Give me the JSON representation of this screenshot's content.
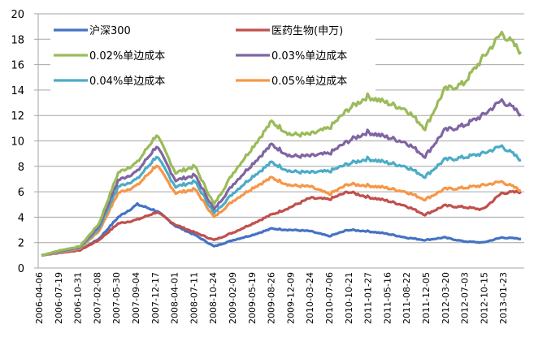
{
  "chart_data": {
    "type": "line",
    "title": "",
    "xlabel": "",
    "ylabel": "",
    "ylim": [
      0,
      20
    ],
    "yticks": [
      0,
      2,
      4,
      6,
      8,
      10,
      12,
      14,
      16,
      18,
      20
    ],
    "grid": true,
    "legend_position": "top-left",
    "x_tick_labels": [
      "2006-04-06",
      "2006-07-19",
      "2006-10-31",
      "2007-02-08",
      "2007-05-30",
      "2007-09-04",
      "2007-12-17",
      "2008-04-01",
      "2008-07-11",
      "2008-10-24",
      "2009-02-09",
      "2009-05-19",
      "2009-08-26",
      "2009-12-09",
      "2010-03-24",
      "2010-07-06",
      "2010-10-21",
      "2011-01-27",
      "2011-05-16",
      "2011-08-22",
      "2011-12-05",
      "2012-03-20",
      "2012-07-03",
      "2012-10-15",
      "2013-01-23"
    ],
    "x": [
      "2006-04-06",
      "2006-07-19",
      "2006-10-31",
      "2007-02-08",
      "2007-05-30",
      "2007-09-04",
      "2007-12-17",
      "2008-04-01",
      "2008-07-11",
      "2008-10-24",
      "2009-02-09",
      "2009-05-19",
      "2009-08-26",
      "2009-12-09",
      "2010-03-24",
      "2010-07-06",
      "2010-10-21",
      "2011-01-27",
      "2011-05-16",
      "2011-08-22",
      "2011-12-05",
      "2012-03-20",
      "2012-07-03",
      "2012-10-15",
      "2013-01-23",
      "2013-04-20"
    ],
    "series": [
      {
        "name": "沪深300",
        "color": "#4472C4",
        "values": [
          1.0,
          1.3,
          1.4,
          2.3,
          4.0,
          5.0,
          4.5,
          3.3,
          2.6,
          1.7,
          2.2,
          2.6,
          3.1,
          3.0,
          2.9,
          2.5,
          3.0,
          2.9,
          2.7,
          2.4,
          2.2,
          2.4,
          2.1,
          2.0,
          2.4,
          2.3
        ]
      },
      {
        "name": "医药生物(申万)",
        "color": "#C0504D",
        "values": [
          1.0,
          1.2,
          1.4,
          2.2,
          3.5,
          3.8,
          4.4,
          3.4,
          2.8,
          2.2,
          2.8,
          3.5,
          4.2,
          4.8,
          5.5,
          5.4,
          6.0,
          5.6,
          5.3,
          4.9,
          4.2,
          4.9,
          4.8,
          4.6,
          5.9,
          6.0
        ]
      },
      {
        "name": "0.02%单边成本",
        "color": "#9BBB59",
        "values": [
          1.0,
          1.4,
          1.7,
          3.5,
          7.5,
          8.3,
          10.5,
          7.5,
          8.0,
          5.0,
          7.5,
          9.5,
          11.5,
          10.5,
          10.5,
          11.0,
          12.5,
          13.5,
          13.0,
          12.5,
          11.0,
          14.0,
          14.5,
          16.5,
          18.5,
          17.0
        ]
      },
      {
        "name": "0.03%单边成本",
        "color": "#8064A2",
        "values": [
          1.0,
          1.35,
          1.65,
          3.3,
          6.9,
          7.6,
          9.6,
          6.9,
          7.3,
          4.6,
          6.6,
          8.2,
          9.7,
          8.8,
          8.8,
          9.0,
          10.0,
          10.7,
          10.3,
          9.9,
          8.8,
          10.8,
          11.2,
          12.0,
          13.2,
          12.1
        ]
      },
      {
        "name": "0.04%单边成本",
        "color": "#4BACC6",
        "values": [
          1.0,
          1.3,
          1.6,
          3.1,
          6.4,
          7.0,
          8.8,
          6.4,
          6.8,
          4.3,
          5.9,
          7.2,
          8.3,
          7.6,
          7.5,
          7.6,
          8.2,
          8.6,
          8.3,
          8.0,
          7.2,
          8.5,
          8.7,
          9.0,
          9.6,
          8.5
        ]
      },
      {
        "name": "0.05%单边成本",
        "color": "#F79646",
        "values": [
          1.0,
          1.25,
          1.55,
          2.9,
          5.9,
          6.5,
          8.1,
          5.9,
          6.2,
          4.0,
          5.3,
          6.3,
          7.1,
          6.5,
          6.4,
          5.8,
          6.6,
          6.5,
          6.3,
          6.0,
          5.4,
          6.2,
          6.3,
          6.5,
          6.8,
          6.1
        ]
      }
    ]
  }
}
